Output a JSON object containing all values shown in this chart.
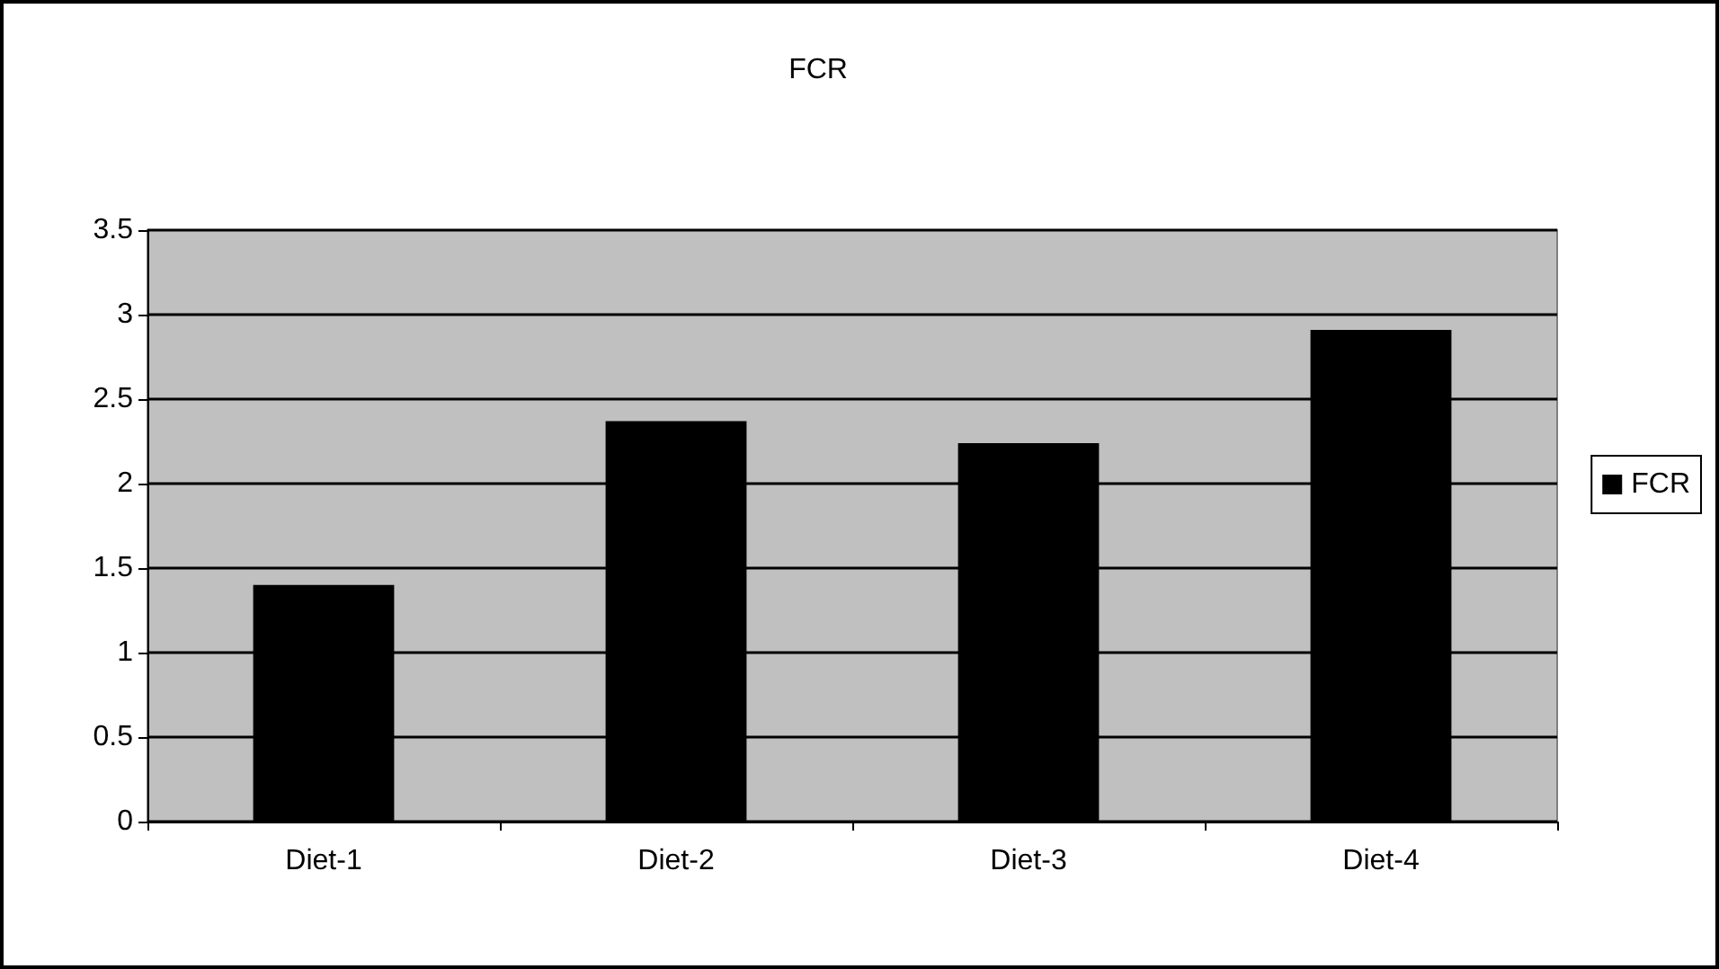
{
  "chart_data": {
    "type": "bar",
    "title": "FCR",
    "categories": [
      "Diet-1",
      "Diet-2",
      "Diet-3",
      "Diet-4"
    ],
    "series": [
      {
        "name": "FCR",
        "color": "#000000",
        "values": [
          1.4,
          2.37,
          2.24,
          2.91
        ]
      }
    ],
    "ylim": [
      0,
      3.5
    ],
    "yticks": [
      0,
      0.5,
      1,
      1.5,
      2,
      2.5,
      3,
      3.5
    ],
    "grid": "y",
    "legend": "right"
  }
}
